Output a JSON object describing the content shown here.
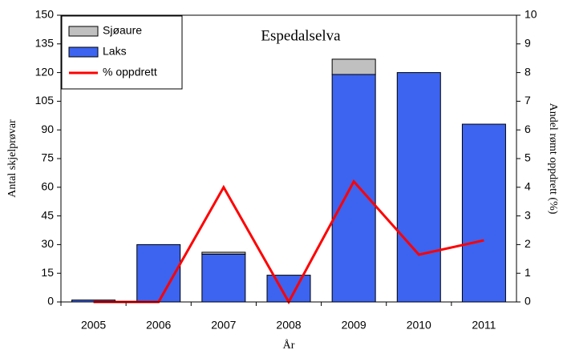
{
  "chart_data": {
    "type": "bar",
    "stacked": true,
    "title": "Espedalselva",
    "x_label": "År",
    "y_label": "Antal skjelprøvar",
    "y2_label": "Andel rømt oppdrett (%)",
    "categories": [
      "2005",
      "2006",
      "2007",
      "2008",
      "2009",
      "2010",
      "2011"
    ],
    "series": [
      {
        "name": "Sjøaure",
        "type": "bar",
        "color": "#c0c0c0",
        "values": [
          0,
          0,
          1,
          0,
          8,
          0,
          0
        ]
      },
      {
        "name": "Laks",
        "type": "bar",
        "color": "#3c64f0",
        "values": [
          1,
          30,
          25,
          14,
          119,
          120,
          93
        ]
      },
      {
        "name": "% oppdrett",
        "type": "line",
        "axis": "y2",
        "color": "#ff0000",
        "values": [
          0,
          0,
          4,
          0,
          4.2,
          1.65,
          2.15
        ]
      }
    ],
    "ylim": [
      0,
      150
    ],
    "yticks": [
      0,
      15,
      30,
      45,
      60,
      75,
      90,
      105,
      120,
      135,
      150
    ],
    "y2lim": [
      0,
      10
    ],
    "y2ticks": [
      0,
      1,
      2,
      3,
      4,
      5,
      6,
      7,
      8,
      9,
      10
    ],
    "grid": false,
    "legend": "top-left"
  }
}
